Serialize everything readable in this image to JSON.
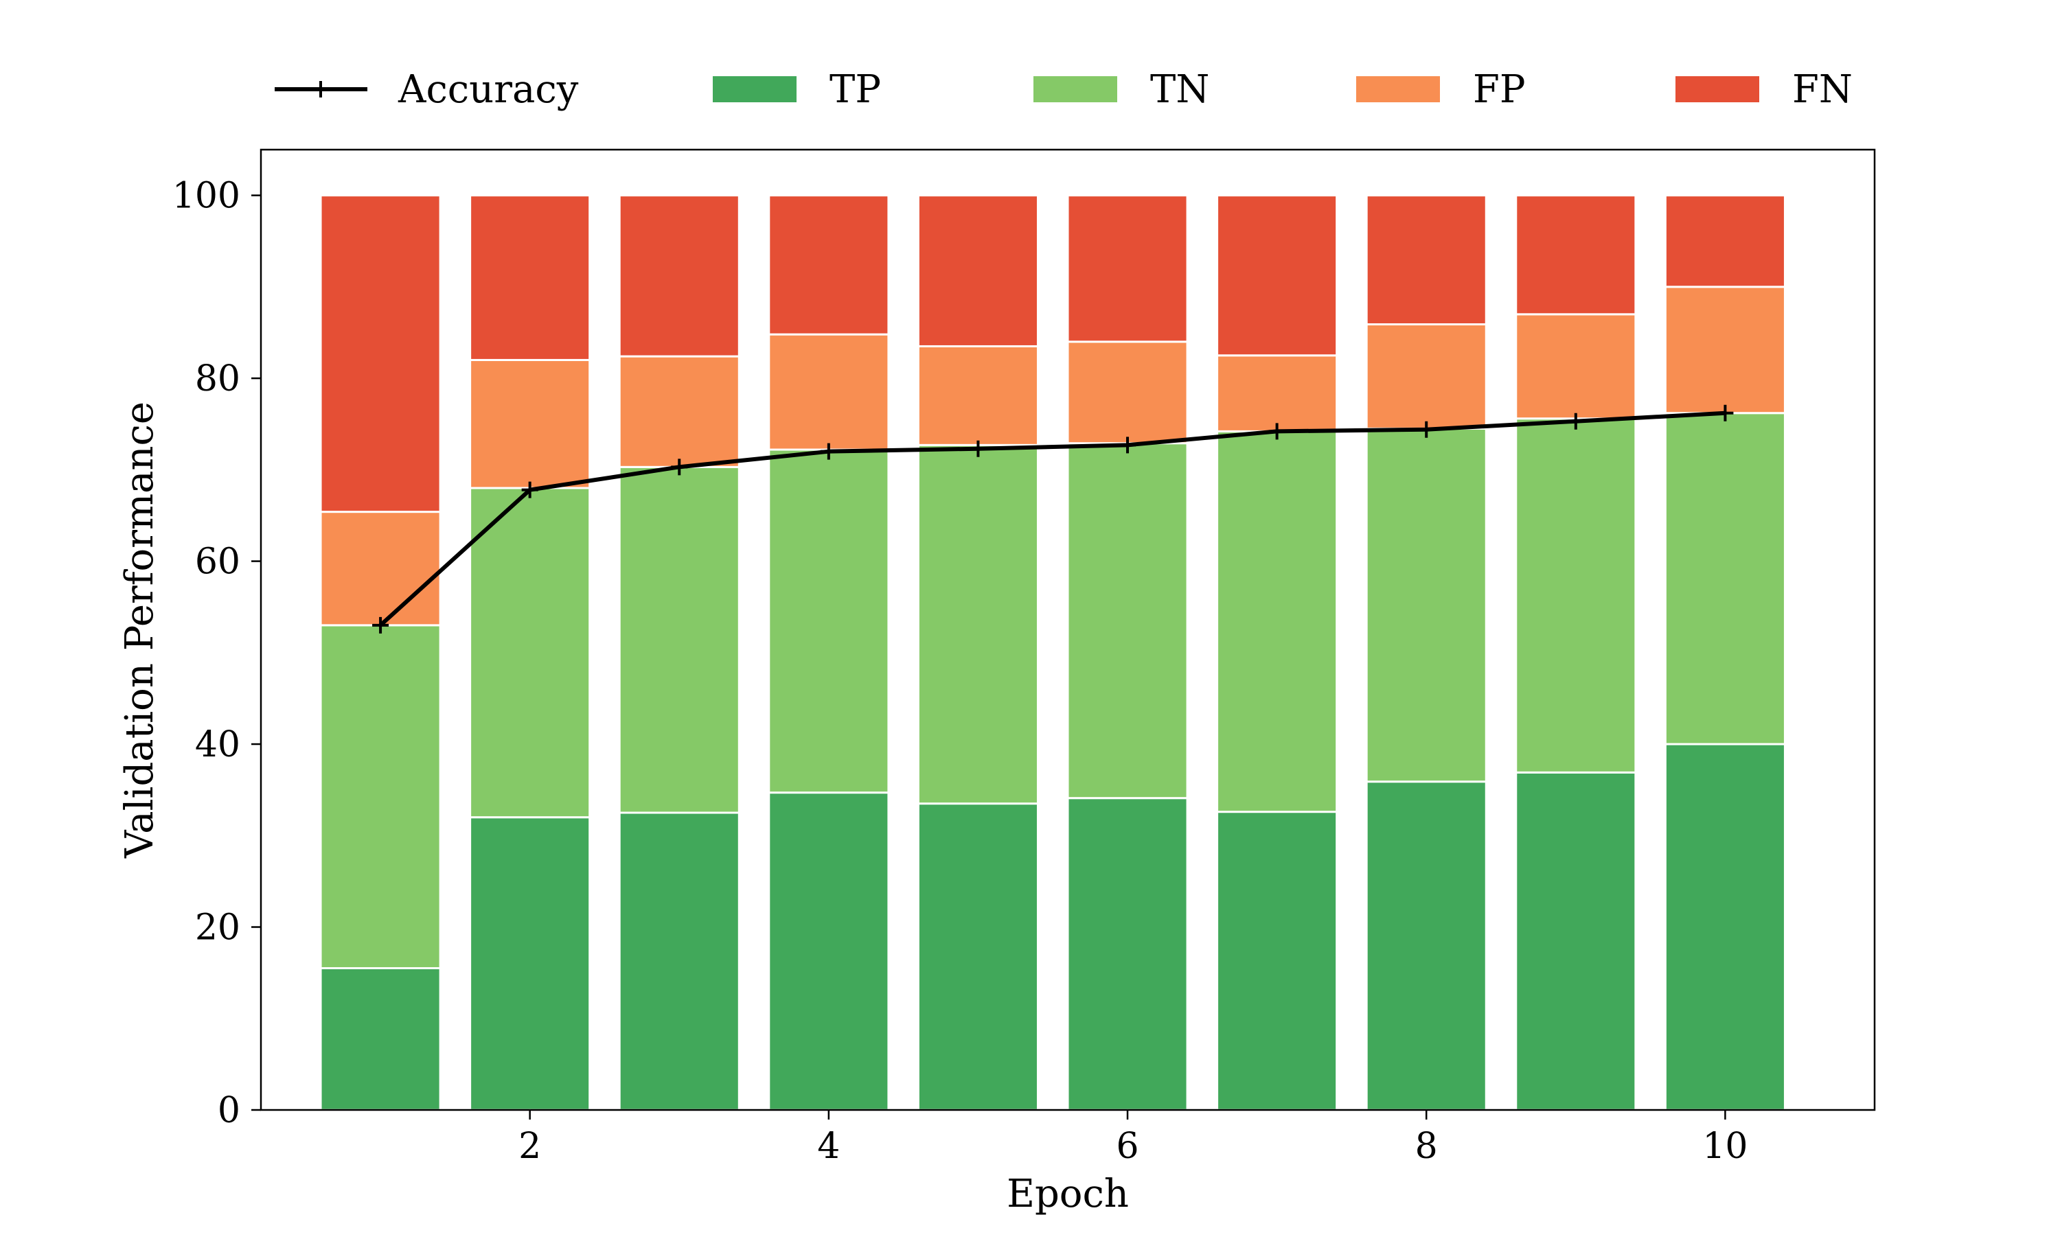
{
  "chart_data": {
    "type": "bar",
    "stacked": true,
    "xlabel": "Epoch",
    "ylabel": "Validation Performance",
    "x": [
      1,
      2,
      3,
      4,
      5,
      6,
      7,
      8,
      9,
      10
    ],
    "xlim": [
      0.2,
      11
    ],
    "ylim": [
      0,
      105
    ],
    "xticks": [
      2,
      4,
      6,
      8,
      10
    ],
    "yticks": [
      0,
      20,
      40,
      60,
      80,
      100
    ],
    "grid": false,
    "legend_position": "top",
    "series": [
      {
        "name": "TP",
        "color": "#41a85a",
        "values": [
          15.5,
          32,
          32.5,
          34.7,
          33.5,
          34.1,
          32.6,
          35.9,
          36.9,
          40
        ]
      },
      {
        "name": "TN",
        "color": "#85c967",
        "values": [
          37.5,
          36,
          37.8,
          37.5,
          39.2,
          38.8,
          41.6,
          38.6,
          38.7,
          36.2
        ]
      },
      {
        "name": "FP",
        "color": "#f88e52",
        "values": [
          12.4,
          14,
          12.1,
          12.6,
          10.8,
          11.1,
          8.3,
          11.4,
          11.4,
          13.8
        ]
      },
      {
        "name": "FN",
        "color": "#e54f35",
        "values": [
          34.6,
          18,
          17.6,
          15.2,
          16.5,
          16,
          17.5,
          14.1,
          13,
          10
        ]
      }
    ],
    "line_series": {
      "name": "Accuracy",
      "color": "#000000",
      "marker": "+",
      "values": [
        53,
        67.8,
        70.3,
        72,
        72.3,
        72.7,
        74.2,
        74.4,
        75.3,
        76.2
      ]
    }
  }
}
